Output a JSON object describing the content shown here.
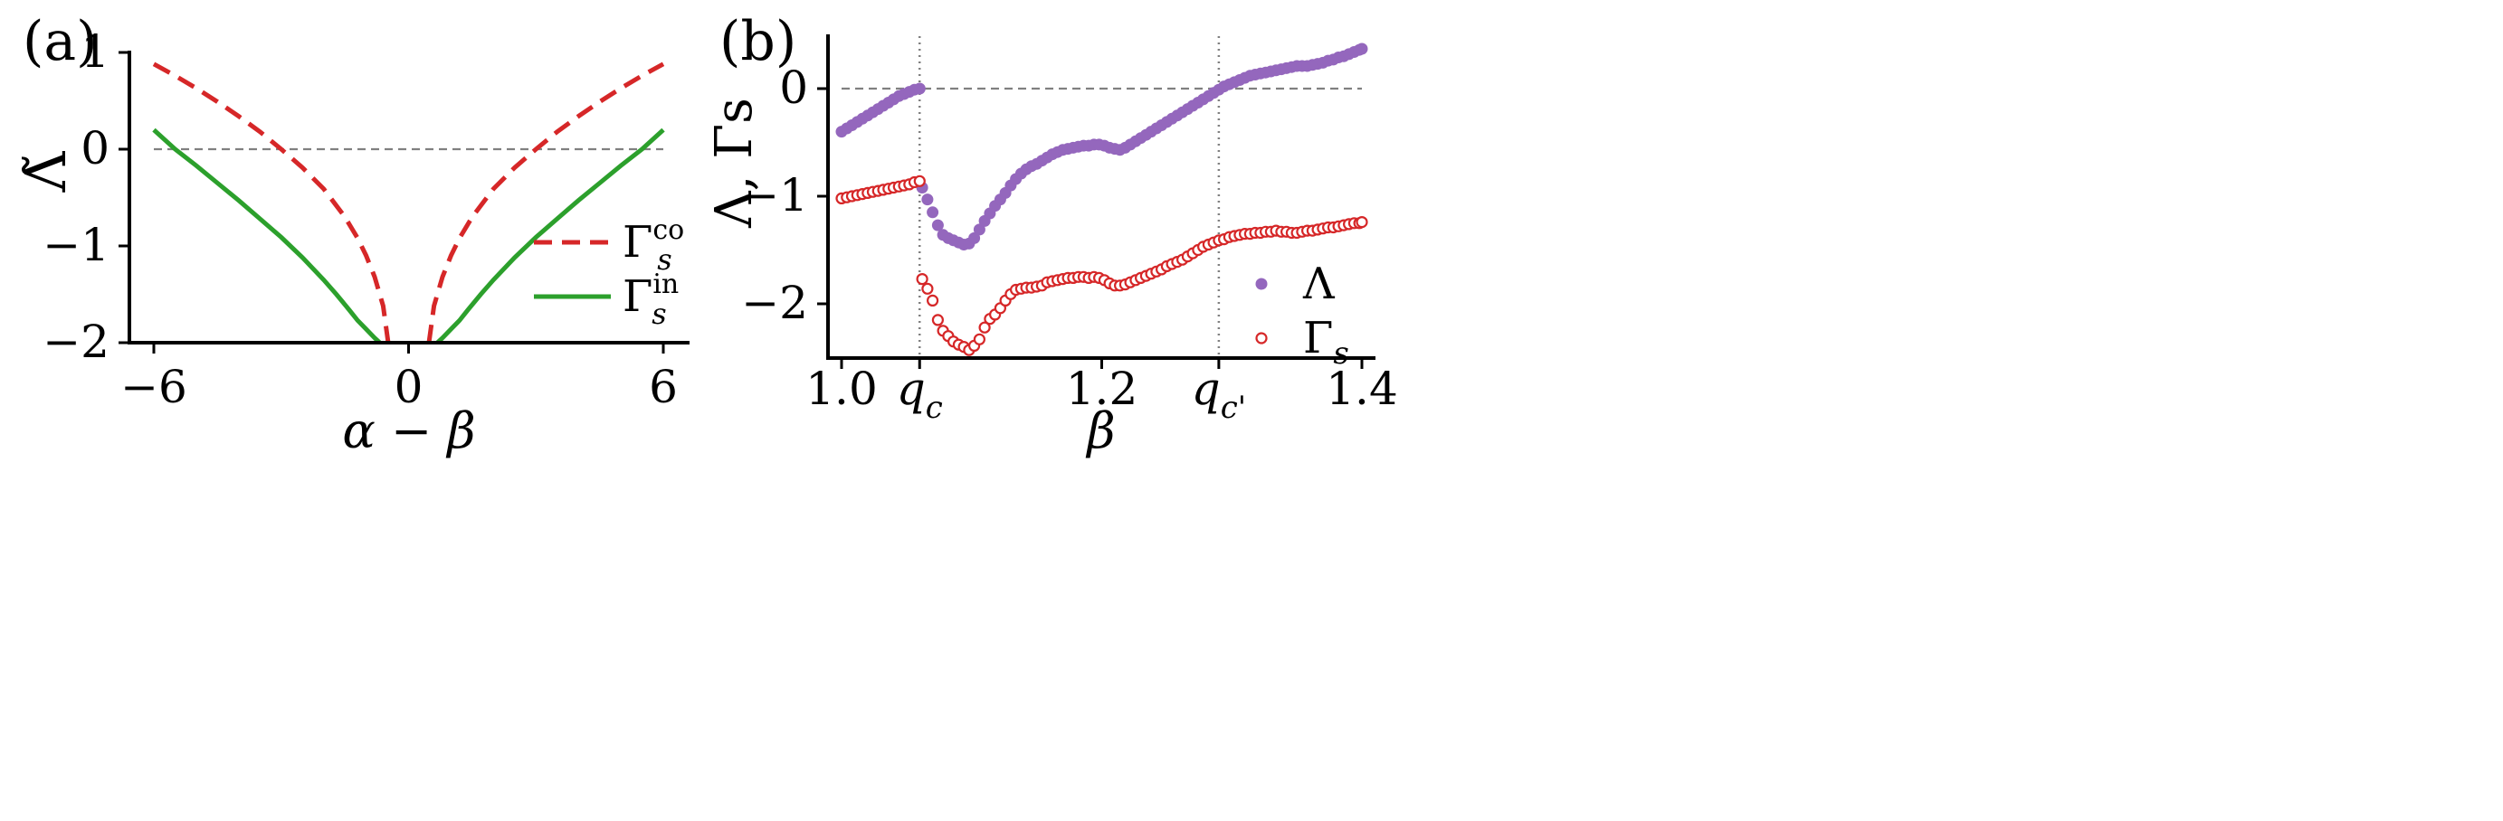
{
  "chart_data": [
    {
      "panel_label": "(a)",
      "type": "line",
      "xlabel": "α − β",
      "ylabel": "Λ̃",
      "xlim": [
        -6.5,
        6.5
      ],
      "ylim": [
        -2,
        1
      ],
      "x_ticks": [
        -6,
        0,
        6
      ],
      "x_tick_labels": [
        "−6",
        "0",
        "6"
      ],
      "y_ticks": [
        1,
        0,
        -1,
        -2
      ],
      "y_tick_labels": [
        "1",
        "0",
        "−1",
        "−2"
      ],
      "reference_lines": [
        {
          "orientation": "horizontal",
          "y": 0,
          "style": "dashed",
          "color": "#808080"
        }
      ],
      "legend_position": "lower-right",
      "series": [
        {
          "name": "Γs^co",
          "legend_base": "Γ",
          "legend_sub": "s",
          "legend_sup": "co",
          "style": "dashed",
          "color": "#d62728",
          "x": [
            -6,
            -5.5,
            -5,
            -4.5,
            -4,
            -3.5,
            -3,
            -2.5,
            -2,
            -1.5,
            -1.2,
            -1,
            -0.8,
            -0.6,
            -0.48,
            0.48,
            0.6,
            0.8,
            1,
            1.2,
            1.5,
            2,
            2.5,
            3,
            3.5,
            4,
            4.5,
            5,
            5.5,
            6
          ],
          "y": [
            0.88,
            0.76,
            0.63,
            0.49,
            0.34,
            0.18,
            0.0,
            -0.19,
            -0.41,
            -0.7,
            -0.92,
            -1.1,
            -1.32,
            -1.62,
            -2.0,
            -2.0,
            -1.62,
            -1.32,
            -1.1,
            -0.92,
            -0.7,
            -0.41,
            -0.19,
            0.0,
            0.18,
            0.34,
            0.49,
            0.63,
            0.76,
            0.88
          ]
        },
        {
          "name": "Γs^in",
          "legend_base": "Γ",
          "legend_sub": "s",
          "legend_sup": "in",
          "style": "solid",
          "color": "#2ca02c",
          "x": [
            -6,
            -5.5,
            -5,
            -4.5,
            -4,
            -3.5,
            -3,
            -2.5,
            -2,
            -1.7,
            -1.4,
            -1.2,
            -1,
            -0.8,
            -0.68,
            0.68,
            0.8,
            1,
            1.2,
            1.4,
            1.7,
            2,
            2.5,
            3,
            3.5,
            4,
            4.5,
            5,
            5.5,
            6
          ],
          "y": [
            0.2,
            0.0,
            -0.17,
            -0.35,
            -0.53,
            -0.72,
            -0.91,
            -1.12,
            -1.35,
            -1.5,
            -1.66,
            -1.77,
            -1.86,
            -1.95,
            -2.0,
            -2.0,
            -1.95,
            -1.86,
            -1.77,
            -1.66,
            -1.5,
            -1.35,
            -1.12,
            -0.91,
            -0.72,
            -0.53,
            -0.35,
            -0.17,
            0.0,
            0.2
          ]
        }
      ]
    },
    {
      "panel_label": "(b)",
      "type": "scatter",
      "xlabel": "β",
      "ylabel": "Λ, Γs",
      "xlim": [
        0.99,
        1.41
      ],
      "ylim": [
        -2.5,
        0.5
      ],
      "x_ticks": [
        1.0,
        1.06,
        1.2,
        1.29,
        1.4
      ],
      "x_tick_labels": [
        "1.0",
        "q_c",
        "1.2",
        "q_c'",
        "1.4"
      ],
      "y_ticks": [
        0,
        -1,
        -2
      ],
      "y_tick_labels": [
        "0",
        "−1",
        "−2"
      ],
      "reference_lines": [
        {
          "orientation": "horizontal",
          "y": 0,
          "style": "dashed",
          "color": "#808080"
        },
        {
          "orientation": "vertical",
          "x": 1.06,
          "style": "dotted",
          "color": "#808080"
        },
        {
          "orientation": "vertical",
          "x": 1.29,
          "style": "dotted",
          "color": "#808080"
        }
      ],
      "legend_position": "lower-right",
      "series": [
        {
          "name": "Λ",
          "marker": "filled-circle",
          "color": "#9467bd",
          "points": [
            [
              1.0,
              -0.4
            ],
            [
              1.004,
              -0.37
            ],
            [
              1.008,
              -0.34
            ],
            [
              1.012,
              -0.31
            ],
            [
              1.016,
              -0.28
            ],
            [
              1.02,
              -0.25
            ],
            [
              1.024,
              -0.22
            ],
            [
              1.028,
              -0.19
            ],
            [
              1.032,
              -0.16
            ],
            [
              1.036,
              -0.13
            ],
            [
              1.04,
              -0.1
            ],
            [
              1.044,
              -0.07
            ],
            [
              1.048,
              -0.05
            ],
            [
              1.052,
              -0.03
            ],
            [
              1.056,
              -0.01
            ],
            [
              1.06,
              0.0
            ],
            [
              1.062,
              -0.92
            ],
            [
              1.066,
              -1.03
            ],
            [
              1.07,
              -1.15
            ],
            [
              1.074,
              -1.27
            ],
            [
              1.078,
              -1.36
            ],
            [
              1.082,
              -1.39
            ],
            [
              1.086,
              -1.41
            ],
            [
              1.09,
              -1.43
            ],
            [
              1.094,
              -1.45
            ],
            [
              1.098,
              -1.44
            ],
            [
              1.102,
              -1.39
            ],
            [
              1.106,
              -1.31
            ],
            [
              1.11,
              -1.23
            ],
            [
              1.114,
              -1.16
            ],
            [
              1.118,
              -1.09
            ],
            [
              1.122,
              -1.03
            ],
            [
              1.126,
              -0.97
            ],
            [
              1.13,
              -0.9
            ],
            [
              1.134,
              -0.84
            ],
            [
              1.138,
              -0.79
            ],
            [
              1.142,
              -0.75
            ],
            [
              1.146,
              -0.72
            ],
            [
              1.15,
              -0.7
            ],
            [
              1.154,
              -0.67
            ],
            [
              1.158,
              -0.64
            ],
            [
              1.162,
              -0.61
            ],
            [
              1.166,
              -0.59
            ],
            [
              1.17,
              -0.57
            ],
            [
              1.174,
              -0.56
            ],
            [
              1.178,
              -0.55
            ],
            [
              1.182,
              -0.54
            ],
            [
              1.186,
              -0.53
            ],
            [
              1.19,
              -0.53
            ],
            [
              1.194,
              -0.52
            ],
            [
              1.198,
              -0.52
            ],
            [
              1.202,
              -0.53
            ],
            [
              1.206,
              -0.55
            ],
            [
              1.21,
              -0.56
            ],
            [
              1.214,
              -0.57
            ],
            [
              1.218,
              -0.55
            ],
            [
              1.222,
              -0.52
            ],
            [
              1.226,
              -0.49
            ],
            [
              1.23,
              -0.46
            ],
            [
              1.234,
              -0.43
            ],
            [
              1.238,
              -0.4
            ],
            [
              1.242,
              -0.37
            ],
            [
              1.246,
              -0.34
            ],
            [
              1.25,
              -0.31
            ],
            [
              1.254,
              -0.28
            ],
            [
              1.258,
              -0.25
            ],
            [
              1.262,
              -0.22
            ],
            [
              1.266,
              -0.19
            ],
            [
              1.27,
              -0.16
            ],
            [
              1.274,
              -0.13
            ],
            [
              1.278,
              -0.1
            ],
            [
              1.282,
              -0.07
            ],
            [
              1.286,
              -0.04
            ],
            [
              1.29,
              -0.01
            ],
            [
              1.294,
              0.02
            ],
            [
              1.298,
              0.04
            ],
            [
              1.302,
              0.06
            ],
            [
              1.306,
              0.08
            ],
            [
              1.31,
              0.1
            ],
            [
              1.314,
              0.12
            ],
            [
              1.318,
              0.13
            ],
            [
              1.322,
              0.14
            ],
            [
              1.326,
              0.15
            ],
            [
              1.33,
              0.16
            ],
            [
              1.334,
              0.17
            ],
            [
              1.338,
              0.18
            ],
            [
              1.342,
              0.19
            ],
            [
              1.346,
              0.2
            ],
            [
              1.35,
              0.21
            ],
            [
              1.354,
              0.21
            ],
            [
              1.358,
              0.21
            ],
            [
              1.362,
              0.22
            ],
            [
              1.366,
              0.23
            ],
            [
              1.37,
              0.24
            ],
            [
              1.374,
              0.26
            ],
            [
              1.378,
              0.27
            ],
            [
              1.382,
              0.29
            ],
            [
              1.386,
              0.3
            ],
            [
              1.39,
              0.32
            ],
            [
              1.394,
              0.34
            ],
            [
              1.398,
              0.36
            ],
            [
              1.4,
              0.37
            ]
          ]
        },
        {
          "name": "Γs",
          "marker": "open-circle",
          "color": "#d62728",
          "points": [
            [
              1.0,
              -1.02
            ],
            [
              1.004,
              -1.01
            ],
            [
              1.008,
              -1.0
            ],
            [
              1.012,
              -0.99
            ],
            [
              1.016,
              -0.98
            ],
            [
              1.02,
              -0.97
            ],
            [
              1.024,
              -0.96
            ],
            [
              1.028,
              -0.95
            ],
            [
              1.032,
              -0.94
            ],
            [
              1.036,
              -0.93
            ],
            [
              1.04,
              -0.92
            ],
            [
              1.044,
              -0.91
            ],
            [
              1.048,
              -0.9
            ],
            [
              1.052,
              -0.89
            ],
            [
              1.056,
              -0.87
            ],
            [
              1.06,
              -0.86
            ],
            [
              1.062,
              -1.77
            ],
            [
              1.066,
              -1.86
            ],
            [
              1.07,
              -1.97
            ],
            [
              1.074,
              -2.15
            ],
            [
              1.078,
              -2.25
            ],
            [
              1.082,
              -2.3
            ],
            [
              1.086,
              -2.35
            ],
            [
              1.09,
              -2.38
            ],
            [
              1.094,
              -2.4
            ],
            [
              1.098,
              -2.43
            ],
            [
              1.102,
              -2.39
            ],
            [
              1.106,
              -2.33
            ],
            [
              1.11,
              -2.22
            ],
            [
              1.114,
              -2.14
            ],
            [
              1.118,
              -2.1
            ],
            [
              1.122,
              -2.04
            ],
            [
              1.126,
              -1.97
            ],
            [
              1.13,
              -1.91
            ],
            [
              1.134,
              -1.87
            ],
            [
              1.138,
              -1.86
            ],
            [
              1.142,
              -1.85
            ],
            [
              1.146,
              -1.85
            ],
            [
              1.15,
              -1.84
            ],
            [
              1.154,
              -1.83
            ],
            [
              1.158,
              -1.8
            ],
            [
              1.162,
              -1.79
            ],
            [
              1.166,
              -1.78
            ],
            [
              1.17,
              -1.77
            ],
            [
              1.174,
              -1.76
            ],
            [
              1.178,
              -1.76
            ],
            [
              1.182,
              -1.75
            ],
            [
              1.186,
              -1.75
            ],
            [
              1.19,
              -1.76
            ],
            [
              1.194,
              -1.75
            ],
            [
              1.198,
              -1.76
            ],
            [
              1.202,
              -1.78
            ],
            [
              1.206,
              -1.81
            ],
            [
              1.21,
              -1.83
            ],
            [
              1.214,
              -1.83
            ],
            [
              1.218,
              -1.82
            ],
            [
              1.222,
              -1.8
            ],
            [
              1.226,
              -1.78
            ],
            [
              1.23,
              -1.76
            ],
            [
              1.234,
              -1.74
            ],
            [
              1.238,
              -1.72
            ],
            [
              1.242,
              -1.7
            ],
            [
              1.246,
              -1.68
            ],
            [
              1.25,
              -1.65
            ],
            [
              1.254,
              -1.63
            ],
            [
              1.258,
              -1.61
            ],
            [
              1.262,
              -1.59
            ],
            [
              1.266,
              -1.56
            ],
            [
              1.27,
              -1.53
            ],
            [
              1.274,
              -1.5
            ],
            [
              1.278,
              -1.47
            ],
            [
              1.282,
              -1.45
            ],
            [
              1.286,
              -1.43
            ],
            [
              1.29,
              -1.41
            ],
            [
              1.294,
              -1.4
            ],
            [
              1.298,
              -1.38
            ],
            [
              1.302,
              -1.37
            ],
            [
              1.306,
              -1.36
            ],
            [
              1.31,
              -1.35
            ],
            [
              1.314,
              -1.35
            ],
            [
              1.318,
              -1.34
            ],
            [
              1.322,
              -1.34
            ],
            [
              1.326,
              -1.33
            ],
            [
              1.33,
              -1.33
            ],
            [
              1.334,
              -1.32
            ],
            [
              1.338,
              -1.33
            ],
            [
              1.342,
              -1.33
            ],
            [
              1.346,
              -1.34
            ],
            [
              1.35,
              -1.34
            ],
            [
              1.354,
              -1.33
            ],
            [
              1.358,
              -1.32
            ],
            [
              1.362,
              -1.32
            ],
            [
              1.366,
              -1.31
            ],
            [
              1.37,
              -1.3
            ],
            [
              1.374,
              -1.29
            ],
            [
              1.378,
              -1.29
            ],
            [
              1.382,
              -1.28
            ],
            [
              1.386,
              -1.27
            ],
            [
              1.39,
              -1.26
            ],
            [
              1.394,
              -1.25
            ],
            [
              1.398,
              -1.25
            ],
            [
              1.4,
              -1.24
            ]
          ]
        }
      ]
    }
  ]
}
